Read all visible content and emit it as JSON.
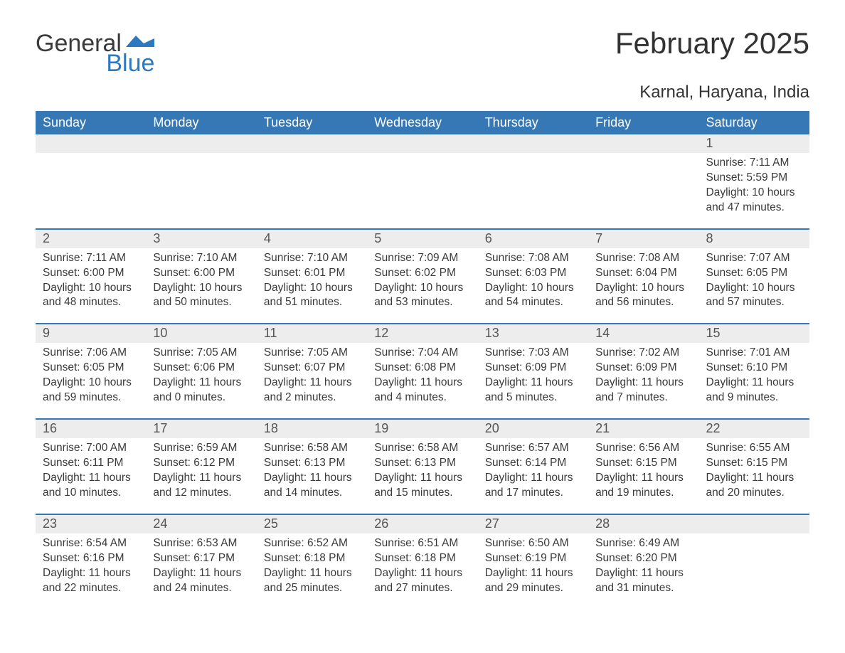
{
  "logo": {
    "word1": "General",
    "word2": "Blue"
  },
  "title": "February 2025",
  "subtitle": "Karnal, Haryana, India",
  "colors": {
    "header_bg": "#3678b6",
    "band_bg": "#ededed",
    "rule": "#3678b6",
    "text": "#333333",
    "logo_blue": "#2c79bf"
  },
  "dow": [
    "Sunday",
    "Monday",
    "Tuesday",
    "Wednesday",
    "Thursday",
    "Friday",
    "Saturday"
  ],
  "weeks": [
    [
      {
        "n": "",
        "lines": []
      },
      {
        "n": "",
        "lines": []
      },
      {
        "n": "",
        "lines": []
      },
      {
        "n": "",
        "lines": []
      },
      {
        "n": "",
        "lines": []
      },
      {
        "n": "",
        "lines": []
      },
      {
        "n": "1",
        "lines": [
          "Sunrise: 7:11 AM",
          "Sunset: 5:59 PM",
          "Daylight: 10 hours and 47 minutes."
        ]
      }
    ],
    [
      {
        "n": "2",
        "lines": [
          "Sunrise: 7:11 AM",
          "Sunset: 6:00 PM",
          "Daylight: 10 hours and 48 minutes."
        ]
      },
      {
        "n": "3",
        "lines": [
          "Sunrise: 7:10 AM",
          "Sunset: 6:00 PM",
          "Daylight: 10 hours and 50 minutes."
        ]
      },
      {
        "n": "4",
        "lines": [
          "Sunrise: 7:10 AM",
          "Sunset: 6:01 PM",
          "Daylight: 10 hours and 51 minutes."
        ]
      },
      {
        "n": "5",
        "lines": [
          "Sunrise: 7:09 AM",
          "Sunset: 6:02 PM",
          "Daylight: 10 hours and 53 minutes."
        ]
      },
      {
        "n": "6",
        "lines": [
          "Sunrise: 7:08 AM",
          "Sunset: 6:03 PM",
          "Daylight: 10 hours and 54 minutes."
        ]
      },
      {
        "n": "7",
        "lines": [
          "Sunrise: 7:08 AM",
          "Sunset: 6:04 PM",
          "Daylight: 10 hours and 56 minutes."
        ]
      },
      {
        "n": "8",
        "lines": [
          "Sunrise: 7:07 AM",
          "Sunset: 6:05 PM",
          "Daylight: 10 hours and 57 minutes."
        ]
      }
    ],
    [
      {
        "n": "9",
        "lines": [
          "Sunrise: 7:06 AM",
          "Sunset: 6:05 PM",
          "Daylight: 10 hours and 59 minutes."
        ]
      },
      {
        "n": "10",
        "lines": [
          "Sunrise: 7:05 AM",
          "Sunset: 6:06 PM",
          "Daylight: 11 hours and 0 minutes."
        ]
      },
      {
        "n": "11",
        "lines": [
          "Sunrise: 7:05 AM",
          "Sunset: 6:07 PM",
          "Daylight: 11 hours and 2 minutes."
        ]
      },
      {
        "n": "12",
        "lines": [
          "Sunrise: 7:04 AM",
          "Sunset: 6:08 PM",
          "Daylight: 11 hours and 4 minutes."
        ]
      },
      {
        "n": "13",
        "lines": [
          "Sunrise: 7:03 AM",
          "Sunset: 6:09 PM",
          "Daylight: 11 hours and 5 minutes."
        ]
      },
      {
        "n": "14",
        "lines": [
          "Sunrise: 7:02 AM",
          "Sunset: 6:09 PM",
          "Daylight: 11 hours and 7 minutes."
        ]
      },
      {
        "n": "15",
        "lines": [
          "Sunrise: 7:01 AM",
          "Sunset: 6:10 PM",
          "Daylight: 11 hours and 9 minutes."
        ]
      }
    ],
    [
      {
        "n": "16",
        "lines": [
          "Sunrise: 7:00 AM",
          "Sunset: 6:11 PM",
          "Daylight: 11 hours and 10 minutes."
        ]
      },
      {
        "n": "17",
        "lines": [
          "Sunrise: 6:59 AM",
          "Sunset: 6:12 PM",
          "Daylight: 11 hours and 12 minutes."
        ]
      },
      {
        "n": "18",
        "lines": [
          "Sunrise: 6:58 AM",
          "Sunset: 6:13 PM",
          "Daylight: 11 hours and 14 minutes."
        ]
      },
      {
        "n": "19",
        "lines": [
          "Sunrise: 6:58 AM",
          "Sunset: 6:13 PM",
          "Daylight: 11 hours and 15 minutes."
        ]
      },
      {
        "n": "20",
        "lines": [
          "Sunrise: 6:57 AM",
          "Sunset: 6:14 PM",
          "Daylight: 11 hours and 17 minutes."
        ]
      },
      {
        "n": "21",
        "lines": [
          "Sunrise: 6:56 AM",
          "Sunset: 6:15 PM",
          "Daylight: 11 hours and 19 minutes."
        ]
      },
      {
        "n": "22",
        "lines": [
          "Sunrise: 6:55 AM",
          "Sunset: 6:15 PM",
          "Daylight: 11 hours and 20 minutes."
        ]
      }
    ],
    [
      {
        "n": "23",
        "lines": [
          "Sunrise: 6:54 AM",
          "Sunset: 6:16 PM",
          "Daylight: 11 hours and 22 minutes."
        ]
      },
      {
        "n": "24",
        "lines": [
          "Sunrise: 6:53 AM",
          "Sunset: 6:17 PM",
          "Daylight: 11 hours and 24 minutes."
        ]
      },
      {
        "n": "25",
        "lines": [
          "Sunrise: 6:52 AM",
          "Sunset: 6:18 PM",
          "Daylight: 11 hours and 25 minutes."
        ]
      },
      {
        "n": "26",
        "lines": [
          "Sunrise: 6:51 AM",
          "Sunset: 6:18 PM",
          "Daylight: 11 hours and 27 minutes."
        ]
      },
      {
        "n": "27",
        "lines": [
          "Sunrise: 6:50 AM",
          "Sunset: 6:19 PM",
          "Daylight: 11 hours and 29 minutes."
        ]
      },
      {
        "n": "28",
        "lines": [
          "Sunrise: 6:49 AM",
          "Sunset: 6:20 PM",
          "Daylight: 11 hours and 31 minutes."
        ]
      },
      {
        "n": "",
        "lines": []
      }
    ]
  ]
}
